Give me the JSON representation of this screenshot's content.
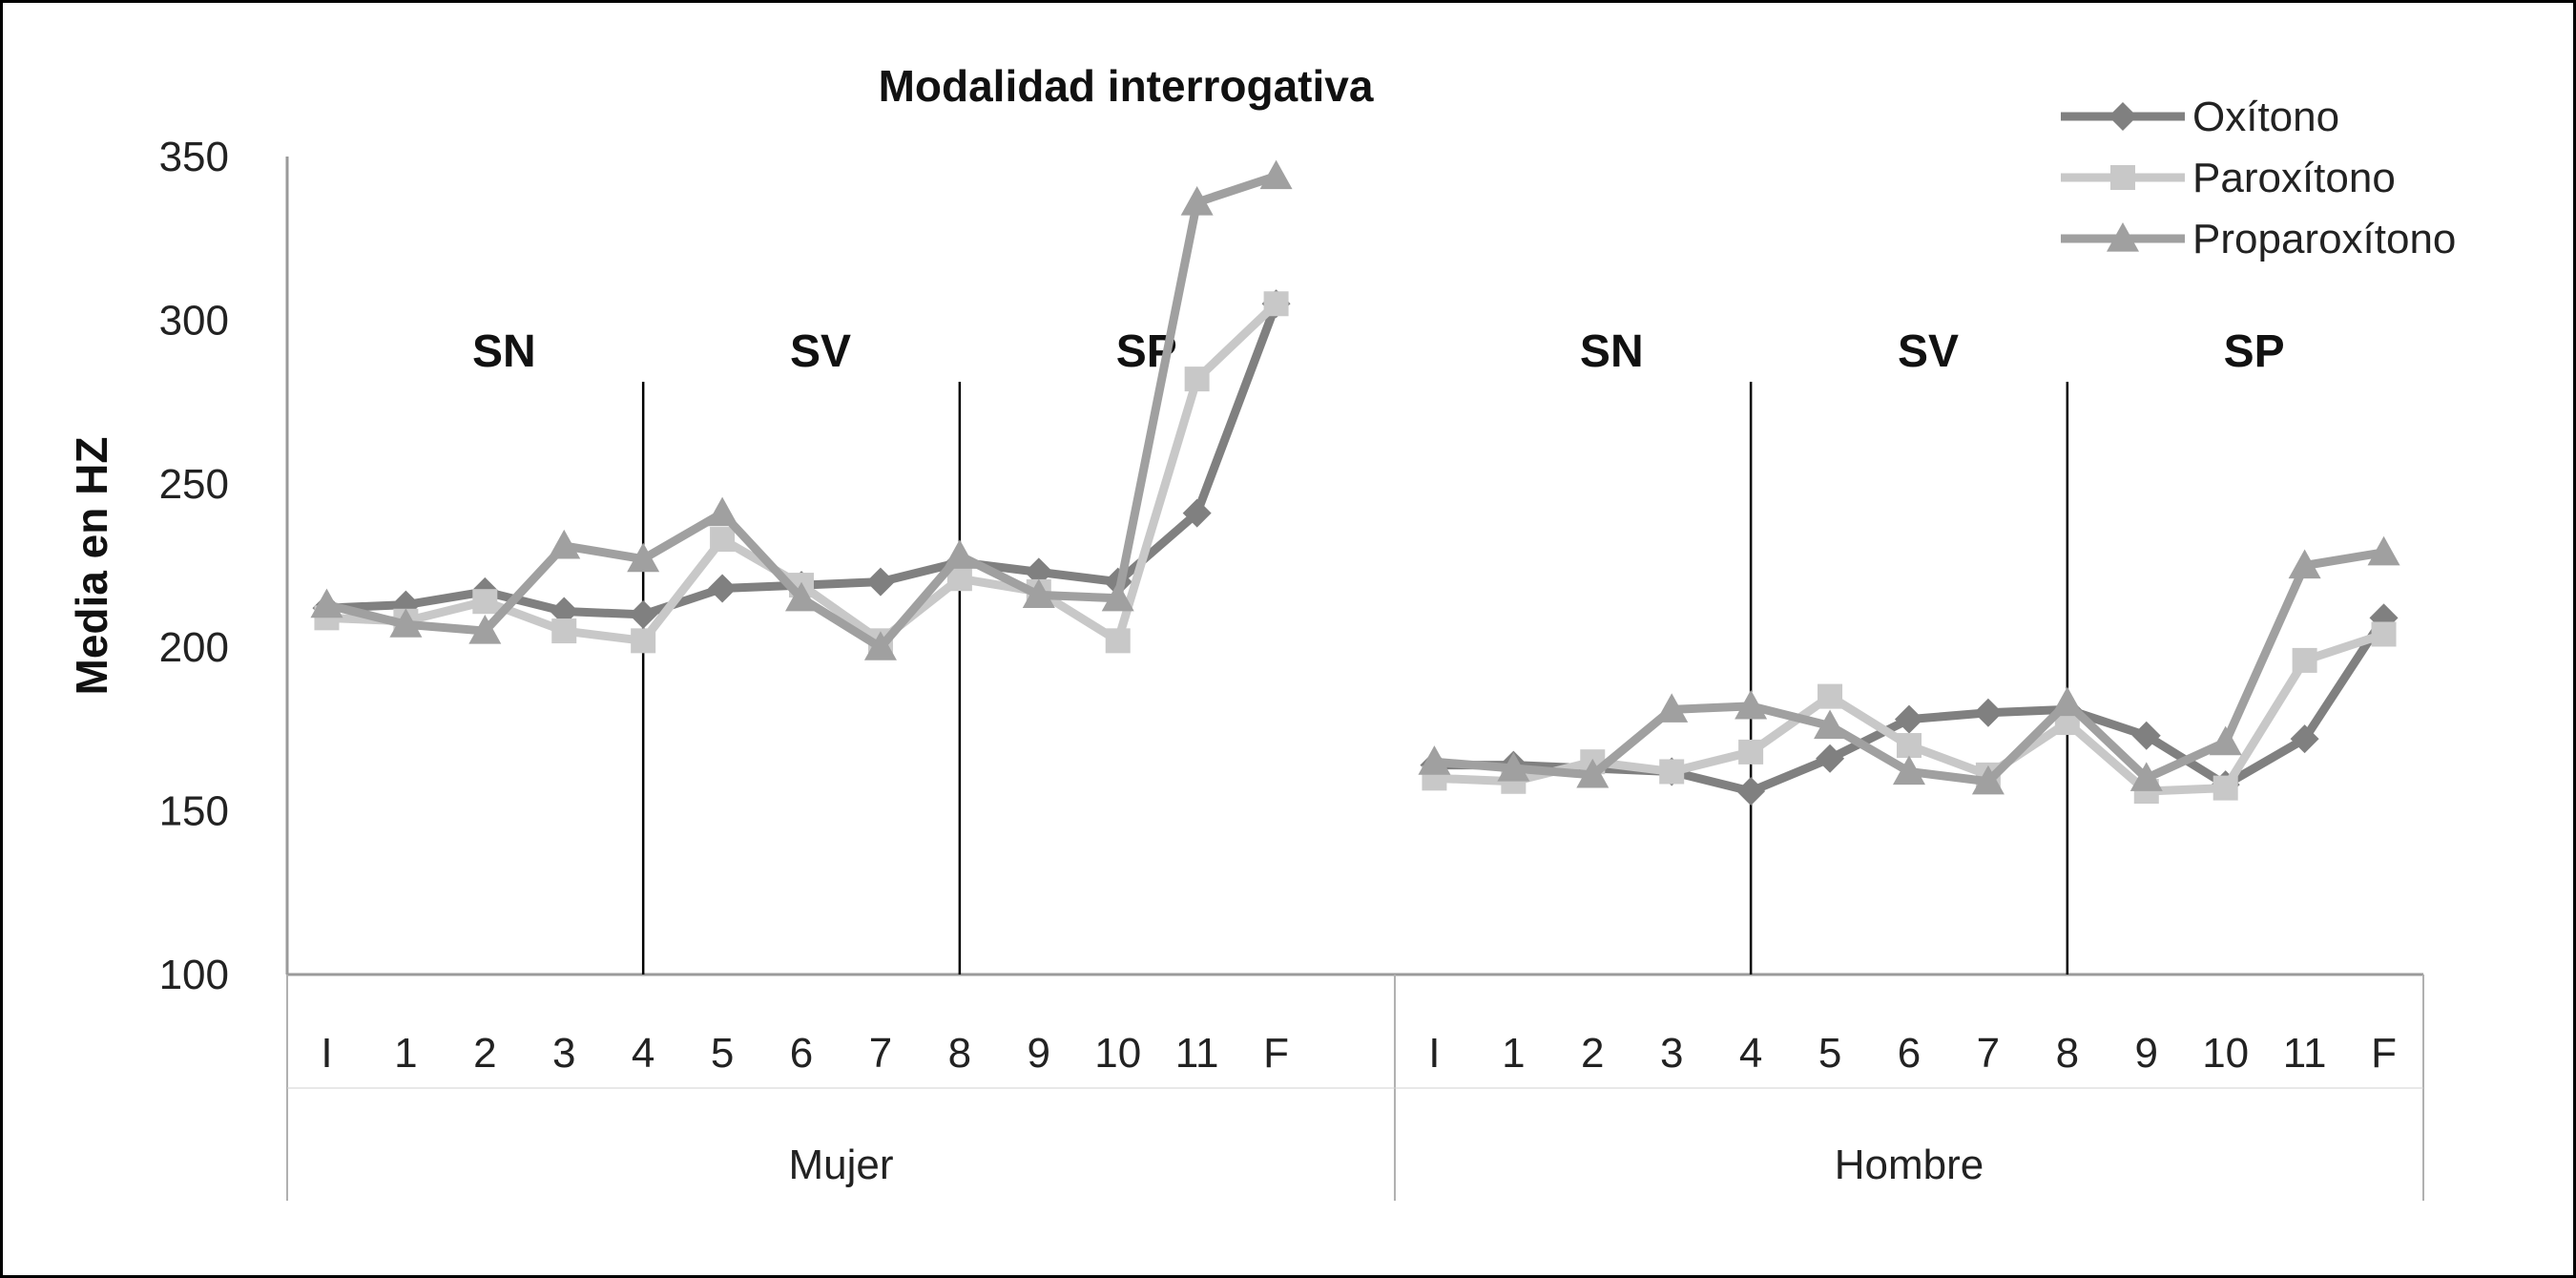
{
  "chart_data": {
    "type": "line",
    "title": "Modalidad interrogativa",
    "xlabel": "",
    "ylabel": "Media en HZ",
    "ylim": [
      100,
      350
    ],
    "yticks": [
      100,
      150,
      200,
      250,
      300,
      350
    ],
    "grid": false,
    "legend_position": "top-right",
    "groups": [
      {
        "name": "Mujer",
        "categories": [
          "I",
          "1",
          "2",
          "3",
          "4",
          "5",
          "6",
          "7",
          "8",
          "9",
          "10",
          "11",
          "F"
        ],
        "regions": [
          {
            "label": "SN",
            "after_category": "4"
          },
          {
            "label": "SV",
            "after_category": "8"
          },
          {
            "label": "SP",
            "after_category": "F"
          }
        ],
        "region_labels": [
          "SN",
          "SV",
          "SP"
        ],
        "separators_at": [
          "4",
          "8"
        ]
      },
      {
        "name": "Hombre",
        "categories": [
          "I",
          "1",
          "2",
          "3",
          "4",
          "5",
          "6",
          "7",
          "8",
          "9",
          "10",
          "11",
          "F"
        ],
        "region_labels": [
          "SN",
          "SV",
          "SP"
        ],
        "separators_at": [
          "4",
          "8"
        ]
      }
    ],
    "series": [
      {
        "name": "Oxítono",
        "marker": "diamond",
        "color": "#808080",
        "values": {
          "Mujer": [
            212,
            213,
            217,
            211,
            210,
            218,
            219,
            220,
            226,
            223,
            220,
            241,
            305
          ],
          "Hombre": [
            164,
            164,
            163,
            162,
            156,
            166,
            178,
            180,
            181,
            173,
            158,
            172,
            209
          ]
        }
      },
      {
        "name": "Paroxítono",
        "marker": "square",
        "color": "#c8c8c8",
        "values": {
          "Mujer": [
            209,
            208,
            214,
            205,
            202,
            233,
            219,
            202,
            221,
            217,
            202,
            282,
            305
          ],
          "Hombre": [
            160,
            159,
            165,
            162,
            168,
            185,
            170,
            161,
            177,
            156,
            157,
            196,
            204
          ]
        }
      },
      {
        "name": "Proparoxítono",
        "marker": "triangle",
        "color": "#a0a0a0",
        "values": {
          "Mujer": [
            213,
            207,
            205,
            231,
            227,
            241,
            215,
            200,
            228,
            216,
            215,
            336,
            344
          ],
          "Hombre": [
            165,
            163,
            161,
            181,
            182,
            176,
            162,
            159,
            183,
            160,
            171,
            225,
            229
          ]
        }
      }
    ]
  }
}
